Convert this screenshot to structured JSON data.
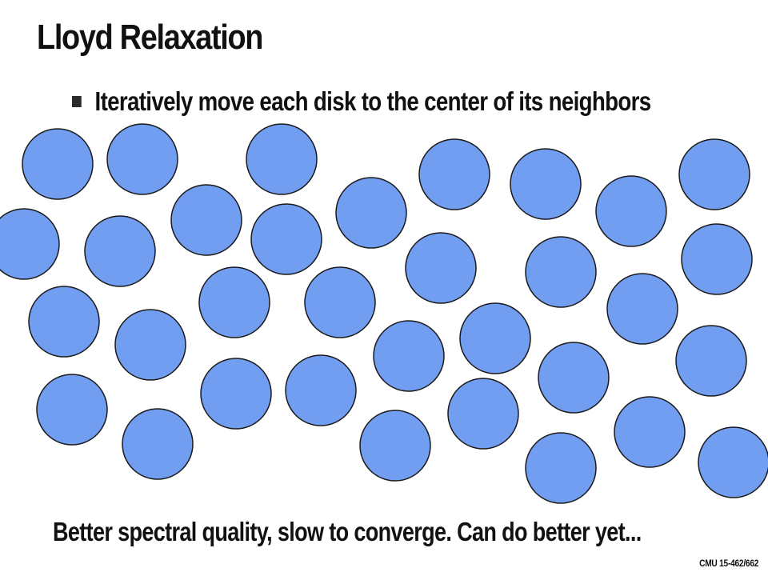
{
  "slide": {
    "title": "Lloyd Relaxation",
    "bullet": "Iteratively move each  disk to the center of its neighbors",
    "footer": "Better spectral quality, slow to converge.  Can do better yet...",
    "course": "CMU 15-462/662"
  },
  "diagram": {
    "disk_color": "#729ef2",
    "outline_color": "#1a1a1a",
    "disk_count": 35
  }
}
